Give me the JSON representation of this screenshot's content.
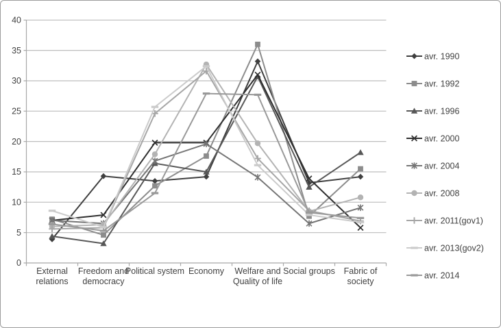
{
  "chart_data": {
    "type": "line",
    "title": "",
    "xlabel": "",
    "ylabel": "",
    "ylim": [
      0,
      40
    ],
    "ytick_step": 5,
    "yticks": [
      "0",
      "5",
      "10",
      "15",
      "20",
      "25",
      "30",
      "35",
      "40"
    ],
    "grid": "horizontal",
    "grid_color": "#bdbdbd",
    "axis_color": "#a8a8a8",
    "text_color": "#3f3f3f",
    "legend_position": "right",
    "categories": [
      "External relations",
      "Freedom and democracy",
      "Political system",
      "Economy",
      "Welfare and Quality of life",
      "Social groups",
      "Fabric of society"
    ],
    "category_labels_wrapped": [
      [
        "External",
        "relations"
      ],
      [
        "Freedom and",
        "democracy"
      ],
      [
        "Political system",
        ""
      ],
      [
        "Economy",
        ""
      ],
      [
        "Welfare and",
        "Quality of life"
      ],
      [
        "Social groups",
        ""
      ],
      [
        "Fabric of",
        "society"
      ]
    ],
    "series": [
      {
        "name": "avr. 1990",
        "marker": "diamond",
        "color": "#3f3f3f",
        "values": [
          3.9,
          14.3,
          13.5,
          14.2,
          33.2,
          13.2,
          14.2
        ]
      },
      {
        "name": "avr. 1992",
        "marker": "square",
        "color": "#8c8c8c",
        "values": [
          7.2,
          4.6,
          12.7,
          17.6,
          36.0,
          7.7,
          15.5
        ]
      },
      {
        "name": "avr. 1996",
        "marker": "triangle",
        "color": "#575757",
        "values": [
          4.4,
          3.2,
          16.4,
          15.0,
          30.7,
          12.5,
          18.2
        ]
      },
      {
        "name": "avr. 2000",
        "marker": "x",
        "color": "#2e2e2e",
        "values": [
          7.0,
          7.9,
          19.8,
          19.8,
          31.0,
          13.9,
          5.8
        ]
      },
      {
        "name": "avr. 2004",
        "marker": "star",
        "color": "#757575",
        "values": [
          7.0,
          6.5,
          16.8,
          19.6,
          14.1,
          6.5,
          9.1
        ]
      },
      {
        "name": "avr. 2008",
        "marker": "circle",
        "color": "#b3b3b3",
        "values": [
          6.0,
          6.3,
          17.9,
          32.7,
          19.7,
          8.5,
          10.8
        ]
      },
      {
        "name": "avr. 2011(gov1)",
        "marker": "plus",
        "color": "#a6a6a6",
        "values": [
          5.6,
          5.8,
          24.6,
          31.6,
          17.2,
          8.6,
          6.9
        ]
      },
      {
        "name": "avr. 2013(gov2)",
        "marker": "dash",
        "color": "#cbcbcb",
        "values": [
          8.6,
          5.9,
          25.7,
          32.4,
          16.1,
          7.9,
          6.7
        ]
      },
      {
        "name": "avr. 2014",
        "marker": "dash",
        "color": "#999999",
        "values": [
          6.4,
          5.3,
          11.5,
          27.9,
          27.7,
          8.3,
          7.4
        ]
      }
    ]
  }
}
